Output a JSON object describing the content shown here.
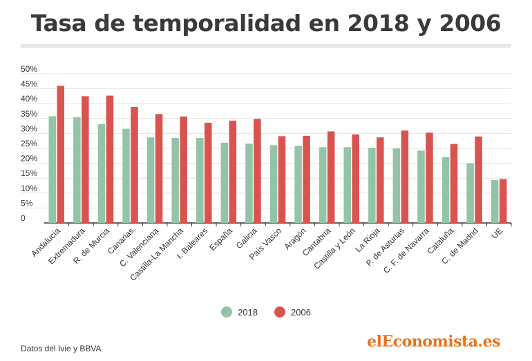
{
  "title": "Tasa de temporalidad en 2018 y 2006",
  "source": "Datos del Ivie y BBVA",
  "brand": "elEconomista.es",
  "colors": {
    "s2018": "#93c4a8",
    "s2006": "#d9534f",
    "grid": "#e3e3e3",
    "axis": "#333333"
  },
  "chart_data": {
    "type": "bar",
    "title": "Tasa de temporalidad en 2018 y 2006",
    "xlabel": "",
    "ylabel": "",
    "ylim": [
      0,
      50
    ],
    "yticks": [
      "0",
      "5%",
      "10%",
      "15%",
      "20%",
      "25%",
      "30%",
      "35%",
      "40%",
      "45%",
      "50%"
    ],
    "grid": true,
    "legend_position": "bottom",
    "categories": [
      "Andalucía",
      "Extremadura",
      "R. de Murcia",
      "Canarias",
      "C. Valenciana",
      "Castilla-La Mancha",
      "I. Baleares",
      "España",
      "Galicia",
      "País Vasco",
      "Aragón",
      "Cantabria",
      "Castilla y León",
      "La Rioja",
      "P. de Asturias",
      "C. F. de Navarra",
      "Cataluña",
      "C. de Madrid",
      "UE"
    ],
    "series": [
      {
        "name": "2018",
        "values": [
          35.8,
          35.5,
          33.1,
          31.6,
          28.7,
          28.5,
          28.5,
          26.9,
          26.6,
          26.1,
          25.9,
          25.4,
          25.4,
          25.2,
          25.0,
          24.3,
          22.1,
          20.0,
          14.4
        ]
      },
      {
        "name": "2006",
        "values": [
          46.0,
          42.5,
          42.7,
          38.9,
          36.5,
          35.7,
          33.6,
          34.3,
          34.9,
          29.1,
          29.2,
          30.7,
          29.7,
          28.7,
          31.0,
          30.3,
          26.5,
          29.0,
          14.7
        ]
      }
    ]
  }
}
